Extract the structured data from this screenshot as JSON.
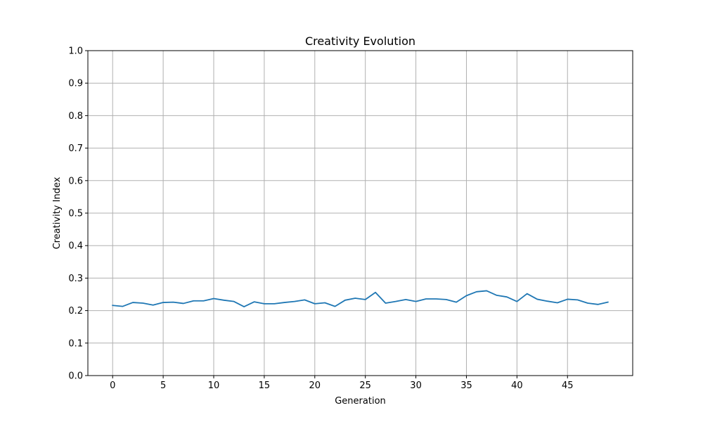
{
  "chart_data": {
    "type": "line",
    "title": "Creativity Evolution",
    "xlabel": "Generation",
    "ylabel": "Creativity Index",
    "xlim": [
      -2.45,
      51.45
    ],
    "ylim": [
      0,
      1
    ],
    "xticks": [
      0,
      5,
      10,
      15,
      20,
      25,
      30,
      35,
      40,
      45
    ],
    "yticks": [
      0.0,
      0.1,
      0.2,
      0.3,
      0.4,
      0.5,
      0.6,
      0.7,
      0.8,
      0.9,
      1.0
    ],
    "xtick_labels": [
      "0",
      "5",
      "10",
      "15",
      "20",
      "25",
      "30",
      "35",
      "40",
      "45"
    ],
    "ytick_labels": [
      "0.0",
      "0.1",
      "0.2",
      "0.3",
      "0.4",
      "0.5",
      "0.6",
      "0.7",
      "0.8",
      "0.9",
      "1.0"
    ],
    "grid": true,
    "colors": {
      "line": "#1f77b4",
      "grid": "#b0b0b0",
      "axes": "#000000"
    },
    "series": [
      {
        "x": [
          0,
          1,
          2,
          3,
          4,
          5,
          6,
          7,
          8,
          9,
          10,
          11,
          12,
          13,
          14,
          15,
          16,
          17,
          18,
          19,
          20,
          21,
          22,
          23,
          24,
          25,
          26,
          27,
          28,
          29,
          30,
          31,
          32,
          33,
          34,
          35,
          36,
          37,
          38,
          39,
          40,
          41,
          42,
          43,
          44,
          45,
          46,
          47,
          48,
          49
        ],
        "values": [
          0.216,
          0.213,
          0.225,
          0.223,
          0.217,
          0.225,
          0.226,
          0.222,
          0.23,
          0.23,
          0.237,
          0.232,
          0.228,
          0.212,
          0.227,
          0.221,
          0.221,
          0.225,
          0.228,
          0.233,
          0.221,
          0.224,
          0.213,
          0.232,
          0.238,
          0.234,
          0.256,
          0.223,
          0.228,
          0.234,
          0.228,
          0.236,
          0.236,
          0.234,
          0.226,
          0.246,
          0.258,
          0.261,
          0.247,
          0.242,
          0.228,
          0.252,
          0.235,
          0.229,
          0.224,
          0.235,
          0.233,
          0.223,
          0.219,
          0.226
        ]
      }
    ]
  }
}
